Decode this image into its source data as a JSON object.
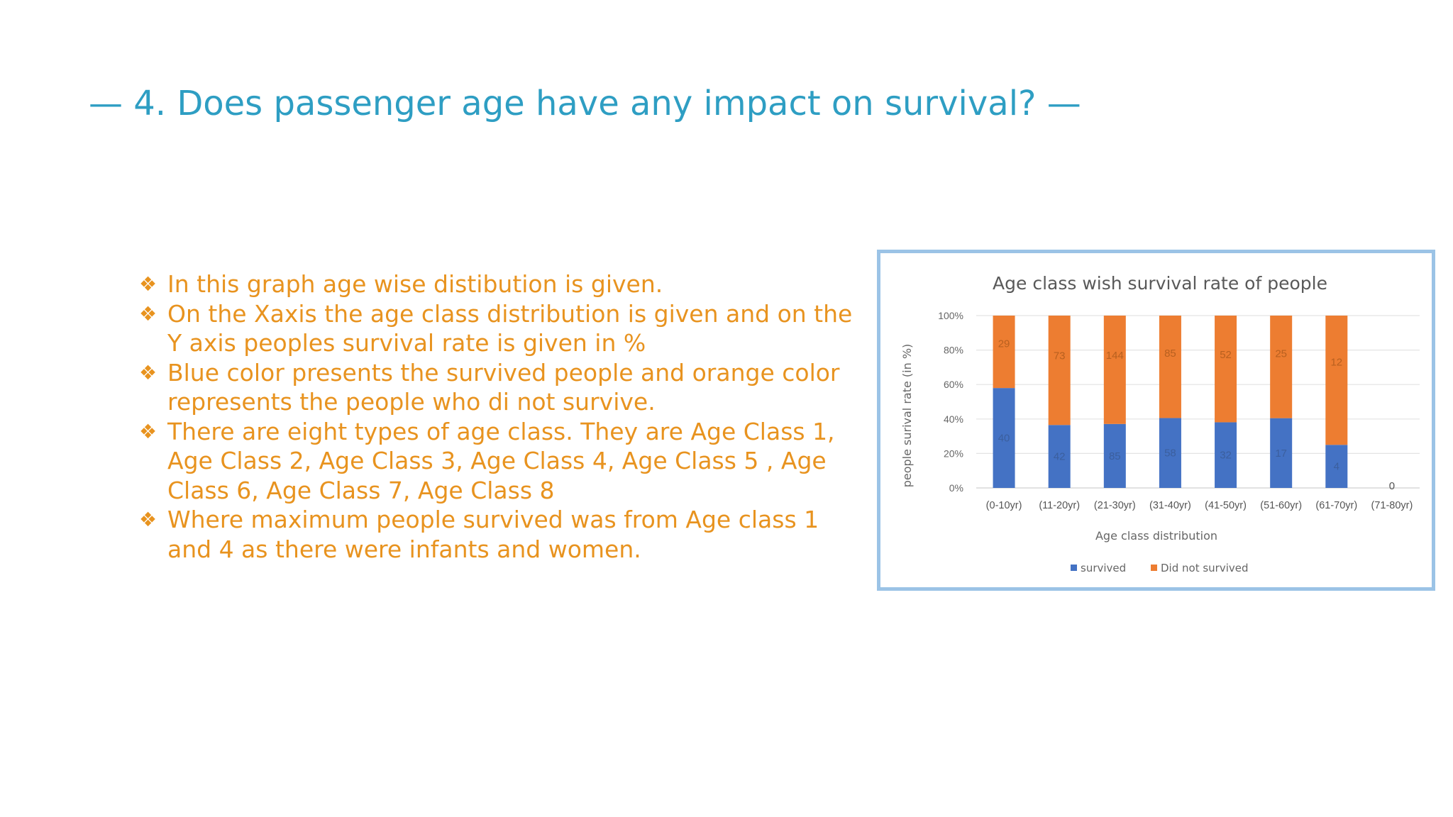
{
  "slide": {
    "title": "— 4. Does passenger age have any impact on survival? —"
  },
  "bullets": [
    {
      "marker": "❖",
      "text": "In this graph age wise distibution is given."
    },
    {
      "marker": "❖",
      "text": "On the Xaxis the age class distribution is given and on the Y axis peoples survival rate is given in %"
    },
    {
      "marker": "❖",
      "text": "Blue color presents the survived people and orange color represents the people who di not survive."
    },
    {
      "marker": "❖",
      "text": "There are eight types of age class. They are Age Class 1, Age Class 2, Age Class 3, Age Class 4, Age Class 5 , Age Class 6, Age Class 7, Age Class 8"
    },
    {
      "marker": "❖",
      "text": "Where maximum people survived was from Age class 1 and 4 as there were infants and women."
    }
  ],
  "colors": {
    "title": "#2e9ec3",
    "bullet_text": "#e8931f",
    "survived": "#4472c4",
    "not_survived": "#ed7d31",
    "frame": "#9bc3e6"
  },
  "chart_data": {
    "type": "bar",
    "stacked": "percent",
    "title": "Age class wish survival rate of people",
    "xlabel": "Age class distribution",
    "ylabel": "people surival rate (in %)",
    "ylim": [
      0,
      100
    ],
    "yticks": [
      "0%",
      "20%",
      "40%",
      "60%",
      "80%",
      "100%"
    ],
    "categories": [
      "(0-10yr)",
      "(11-20yr)",
      "(21-30yr)",
      "(31-40yr)",
      "(41-50yr)",
      "(51-60yr)",
      "(61-70yr)",
      "(71-80yr)"
    ],
    "series": [
      {
        "name": "survived",
        "values": [
          40,
          42,
          85,
          58,
          32,
          17,
          4,
          0
        ]
      },
      {
        "name": "Did not survived",
        "values": [
          29,
          73,
          144,
          85,
          52,
          25,
          12,
          0
        ]
      }
    ],
    "legend": "bottom",
    "grid": true
  }
}
